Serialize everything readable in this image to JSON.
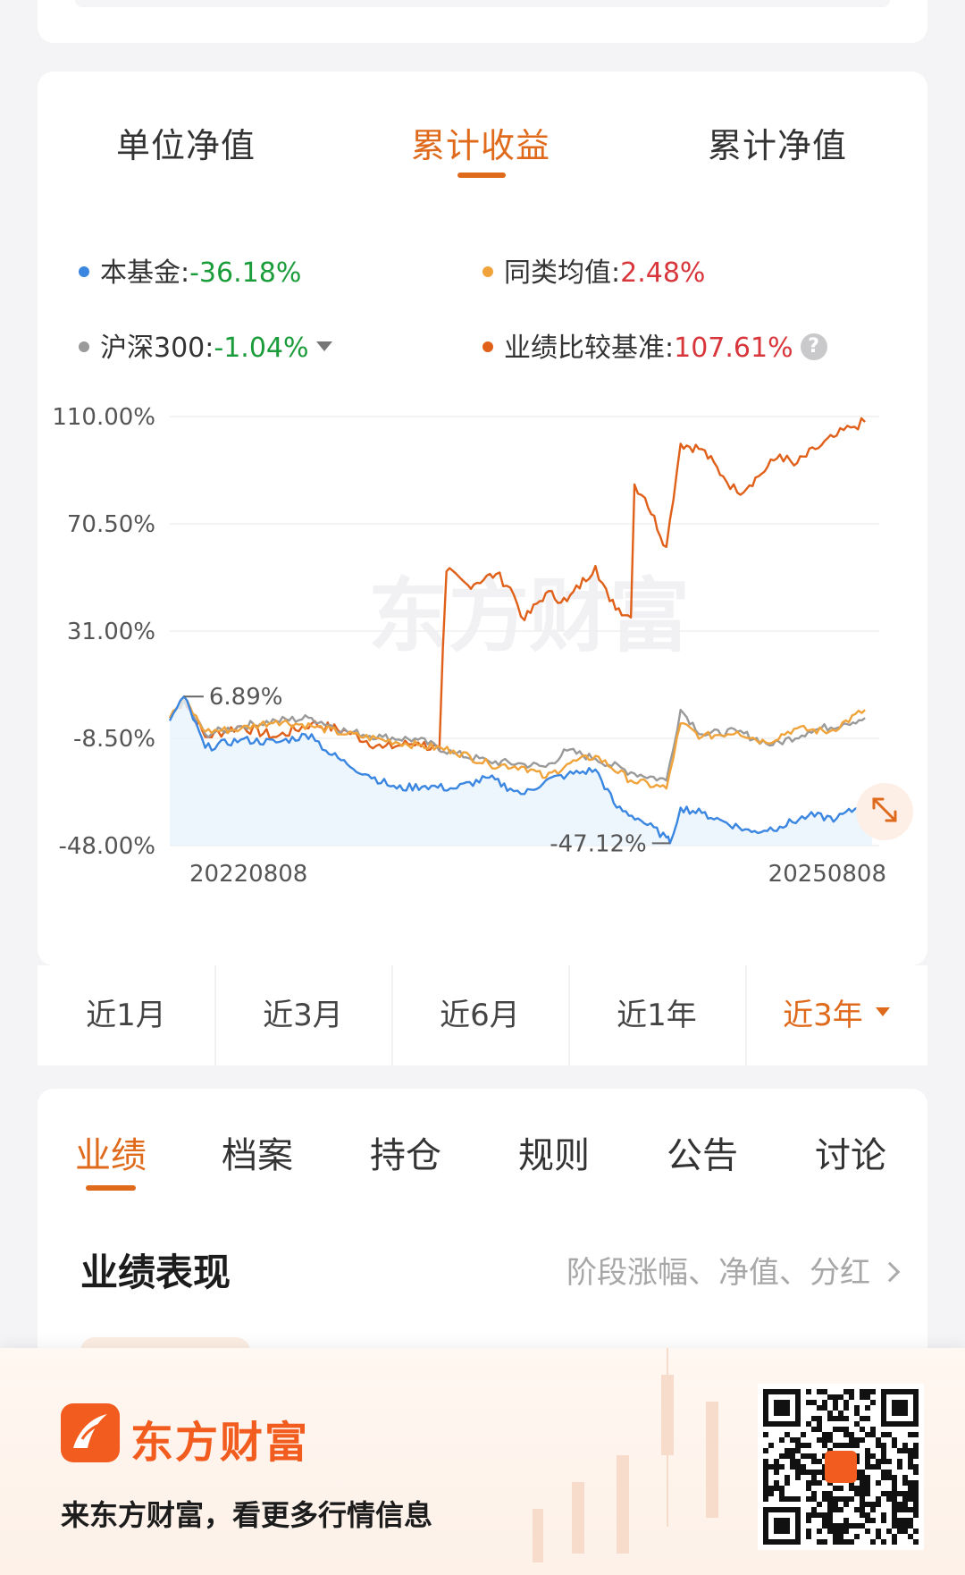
{
  "tabs": [
    {
      "label": "单位净值",
      "active": false
    },
    {
      "label": "累计收益",
      "active": true
    },
    {
      "label": "累计净值",
      "active": false
    }
  ],
  "legend": [
    {
      "name": "本基金:",
      "value": "-36.18%",
      "color": "#3a86e0",
      "tone": "neg"
    },
    {
      "name": "同类均值:",
      "value": "2.48%",
      "color": "#f0a33a",
      "tone": "pos"
    },
    {
      "name": "沪深300:",
      "value": "-1.04%",
      "color": "#9a9a9a",
      "tone": "neg",
      "dropdown": true
    },
    {
      "name": "业绩比较基准:",
      "value": "107.61%",
      "color": "#e0601a",
      "tone": "pos",
      "help": true
    }
  ],
  "chart_data": {
    "type": "line",
    "ylim": [
      -48.0,
      110.0
    ],
    "yticks": [
      "110.00%",
      "70.50%",
      "31.00%",
      "-8.50%",
      "-48.00%"
    ],
    "yticks_values": [
      110.0,
      70.5,
      31.0,
      -8.5,
      -48.0
    ],
    "x_start_label": "20220808",
    "x_end_label": "20250808",
    "grid": true,
    "watermark": "东方财富",
    "annotations": [
      {
        "text": "6.89%",
        "x": 0.02,
        "y": 6.89
      },
      {
        "text": "-47.12%",
        "x": 0.705,
        "y": -47.12
      }
    ],
    "series": [
      {
        "name": "业绩比较基准",
        "color": "#e0601a",
        "points": [
          [
            0,
            -1
          ],
          [
            0.02,
            6
          ],
          [
            0.05,
            -8
          ],
          [
            0.1,
            -4
          ],
          [
            0.15,
            -8
          ],
          [
            0.2,
            -3
          ],
          [
            0.25,
            -6
          ],
          [
            0.3,
            -12
          ],
          [
            0.35,
            -10
          ],
          [
            0.38,
            -13
          ],
          [
            0.385,
            25
          ],
          [
            0.39,
            53
          ],
          [
            0.42,
            48
          ],
          [
            0.46,
            52
          ],
          [
            0.48,
            47
          ],
          [
            0.5,
            35
          ],
          [
            0.53,
            45
          ],
          [
            0.56,
            42
          ],
          [
            0.6,
            55
          ],
          [
            0.62,
            42
          ],
          [
            0.65,
            36
          ],
          [
            0.655,
            85
          ],
          [
            0.67,
            80
          ],
          [
            0.7,
            62
          ],
          [
            0.72,
            100
          ],
          [
            0.75,
            98
          ],
          [
            0.78,
            88
          ],
          [
            0.8,
            82
          ],
          [
            0.83,
            88
          ],
          [
            0.86,
            96
          ],
          [
            0.88,
            92
          ],
          [
            0.91,
            98
          ],
          [
            0.94,
            103
          ],
          [
            0.96,
            106
          ],
          [
            0.98,
            108
          ]
        ]
      },
      {
        "name": "沪深300",
        "color": "#9a9a9a",
        "points": [
          [
            0,
            -1
          ],
          [
            0.02,
            5
          ],
          [
            0.05,
            -7
          ],
          [
            0.1,
            -4
          ],
          [
            0.15,
            -2
          ],
          [
            0.2,
            -1
          ],
          [
            0.25,
            -6
          ],
          [
            0.3,
            -8
          ],
          [
            0.35,
            -9
          ],
          [
            0.4,
            -14
          ],
          [
            0.45,
            -17
          ],
          [
            0.5,
            -18
          ],
          [
            0.53,
            -19
          ],
          [
            0.56,
            -13
          ],
          [
            0.6,
            -16
          ],
          [
            0.65,
            -21
          ],
          [
            0.7,
            -24
          ],
          [
            0.72,
            2
          ],
          [
            0.75,
            -7
          ],
          [
            0.8,
            -6
          ],
          [
            0.85,
            -11
          ],
          [
            0.9,
            -6
          ],
          [
            0.95,
            -3
          ],
          [
            0.98,
            -1
          ]
        ]
      },
      {
        "name": "同类均值",
        "color": "#f0a33a",
        "points": [
          [
            0,
            -1
          ],
          [
            0.02,
            6
          ],
          [
            0.05,
            -6
          ],
          [
            0.1,
            -5
          ],
          [
            0.15,
            -2
          ],
          [
            0.2,
            -4
          ],
          [
            0.25,
            -7
          ],
          [
            0.3,
            -9
          ],
          [
            0.35,
            -11
          ],
          [
            0.4,
            -13
          ],
          [
            0.45,
            -18
          ],
          [
            0.5,
            -19
          ],
          [
            0.53,
            -23
          ],
          [
            0.56,
            -18
          ],
          [
            0.6,
            -15
          ],
          [
            0.65,
            -24
          ],
          [
            0.7,
            -27
          ],
          [
            0.72,
            -3
          ],
          [
            0.75,
            -8
          ],
          [
            0.8,
            -6
          ],
          [
            0.84,
            -10
          ],
          [
            0.88,
            -5
          ],
          [
            0.93,
            -6
          ],
          [
            0.98,
            2
          ]
        ]
      },
      {
        "name": "本基金",
        "color": "#3a86e0",
        "fill": true,
        "points": [
          [
            0,
            -2
          ],
          [
            0.02,
            6.89
          ],
          [
            0.05,
            -12
          ],
          [
            0.1,
            -9
          ],
          [
            0.15,
            -10
          ],
          [
            0.2,
            -7
          ],
          [
            0.22,
            -13
          ],
          [
            0.25,
            -18
          ],
          [
            0.28,
            -22
          ],
          [
            0.32,
            -27
          ],
          [
            0.36,
            -26
          ],
          [
            0.4,
            -27
          ],
          [
            0.45,
            -23
          ],
          [
            0.48,
            -27
          ],
          [
            0.5,
            -29
          ],
          [
            0.53,
            -24
          ],
          [
            0.56,
            -22
          ],
          [
            0.6,
            -20
          ],
          [
            0.63,
            -34
          ],
          [
            0.66,
            -38
          ],
          [
            0.7,
            -45
          ],
          [
            0.705,
            -47.12
          ],
          [
            0.72,
            -34
          ],
          [
            0.75,
            -36
          ],
          [
            0.78,
            -39
          ],
          [
            0.82,
            -43
          ],
          [
            0.86,
            -41
          ],
          [
            0.9,
            -37
          ],
          [
            0.94,
            -38
          ],
          [
            0.97,
            -34
          ],
          [
            0.99,
            -36
          ]
        ]
      }
    ]
  },
  "periods": [
    {
      "label": "近1月",
      "active": false
    },
    {
      "label": "近3月",
      "active": false
    },
    {
      "label": "近6月",
      "active": false
    },
    {
      "label": "近1年",
      "active": false
    },
    {
      "label": "近3年",
      "active": true
    }
  ],
  "section_tabs": [
    {
      "label": "业绩",
      "active": true
    },
    {
      "label": "档案",
      "active": false
    },
    {
      "label": "持仓",
      "active": false
    },
    {
      "label": "规则",
      "active": false
    },
    {
      "label": "公告",
      "active": false
    },
    {
      "label": "讨论",
      "active": false
    }
  ],
  "performance": {
    "title": "业绩表现",
    "link": "阶段涨幅、净值、分红"
  },
  "footer": {
    "brand": "东方财富",
    "slogan": "来东方财富，看更多行情信息",
    "brand_color": "#f25c1e"
  }
}
